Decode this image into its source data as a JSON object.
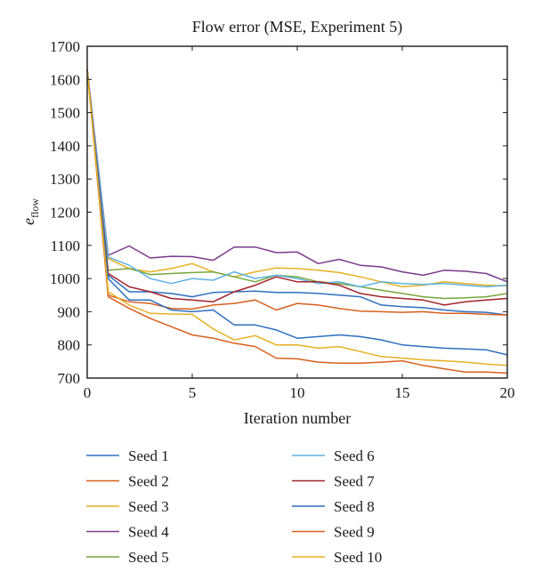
{
  "chart_data": {
    "type": "line",
    "title": "Flow error (MSE, Experiment 5)",
    "xlabel": "Iteration number",
    "ylabel": "e",
    "ylabel_sub": "flow",
    "xlim": [
      0,
      20
    ],
    "ylim": [
      700,
      1700
    ],
    "xticks": [
      0,
      5,
      10,
      15,
      20
    ],
    "yticks": [
      700,
      800,
      900,
      1000,
      1100,
      1200,
      1300,
      1400,
      1500,
      1600,
      1700
    ],
    "grid": false,
    "legend_position": "bottom",
    "x": [
      0,
      1,
      2,
      3,
      4,
      5,
      6,
      7,
      8,
      9,
      10,
      11,
      12,
      13,
      14,
      15,
      16,
      17,
      18,
      19,
      20
    ],
    "series": [
      {
        "name": "Seed 1",
        "color": "#2e6fbf",
        "values": [
          1630,
          1010,
          960,
          960,
          955,
          945,
          958,
          960,
          962,
          958,
          958,
          955,
          950,
          945,
          920,
          915,
          912,
          905,
          900,
          898,
          890
        ]
      },
      {
        "name": "Seed 2",
        "color": "#d95f1e",
        "values": [
          1630,
          950,
          930,
          925,
          910,
          908,
          920,
          925,
          935,
          905,
          925,
          920,
          910,
          902,
          900,
          898,
          900,
          895,
          895,
          892,
          890
        ]
      },
      {
        "name": "Seed 3",
        "color": "#e6b121",
        "values": [
          1630,
          1060,
          1030,
          1020,
          1030,
          1045,
          1020,
          1005,
          1020,
          1032,
          1030,
          1025,
          1018,
          1005,
          990,
          975,
          980,
          990,
          985,
          980,
          978
        ]
      },
      {
        "name": "Seed 4",
        "color": "#7b3a8c",
        "values": [
          1630,
          1070,
          1098,
          1062,
          1067,
          1066,
          1055,
          1095,
          1095,
          1078,
          1080,
          1045,
          1058,
          1040,
          1035,
          1020,
          1010,
          1025,
          1022,
          1015,
          990
        ]
      },
      {
        "name": "Seed 5",
        "color": "#77a63a",
        "values": [
          1630,
          1025,
          1030,
          1012,
          1015,
          1018,
          1020,
          1005,
          990,
          1010,
          1005,
          990,
          985,
          975,
          965,
          955,
          945,
          940,
          942,
          945,
          955
        ]
      },
      {
        "name": "Seed 6",
        "color": "#5db3e3",
        "values": [
          1630,
          1065,
          1040,
          1000,
          985,
          1000,
          995,
          1020,
          1000,
          1010,
          1000,
          985,
          990,
          975,
          990,
          985,
          982,
          985,
          980,
          975,
          980
        ]
      },
      {
        "name": "Seed 7",
        "color": "#a3232b",
        "values": [
          1630,
          1015,
          975,
          960,
          940,
          935,
          930,
          960,
          980,
          1005,
          990,
          990,
          980,
          955,
          945,
          940,
          935,
          920,
          930,
          935,
          940
        ]
      },
      {
        "name": "Seed 8",
        "color": "#2e6fbf",
        "values": [
          1630,
          1000,
          935,
          935,
          905,
          900,
          905,
          860,
          860,
          845,
          820,
          825,
          830,
          825,
          815,
          800,
          795,
          790,
          788,
          785,
          770
        ]
      },
      {
        "name": "Seed 9",
        "color": "#d95f1e",
        "values": [
          1630,
          945,
          910,
          880,
          855,
          830,
          820,
          805,
          795,
          760,
          758,
          748,
          745,
          745,
          748,
          752,
          738,
          728,
          718,
          718,
          715
        ]
      },
      {
        "name": "Seed 10",
        "color": "#e6b121",
        "values": [
          1630,
          960,
          920,
          895,
          893,
          892,
          848,
          815,
          828,
          800,
          800,
          790,
          795,
          780,
          765,
          760,
          755,
          752,
          748,
          742,
          738
        ]
      }
    ]
  }
}
